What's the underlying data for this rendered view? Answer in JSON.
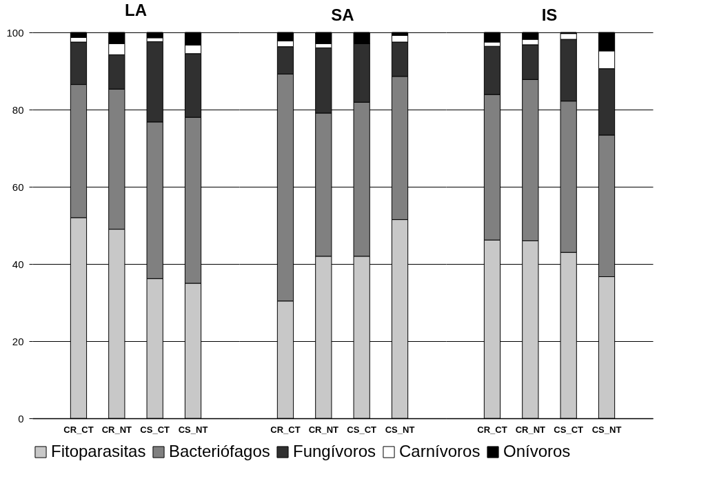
{
  "chart_data": [
    {
      "type": "bar",
      "title": "LA",
      "stacked": true,
      "categories": [
        "CR_CT",
        "CR_NT",
        "CS_CT",
        "CS_NT"
      ],
      "ylim": [
        0,
        100
      ],
      "yticks": [
        0,
        20,
        40,
        60,
        80,
        100
      ],
      "grid": "y",
      "legend": "bottom",
      "series": [
        {
          "name": "Fitoparasitas",
          "color": "#c8c8c8",
          "values": [
            52,
            49,
            36.2,
            35
          ]
        },
        {
          "name": "Bacteriófagos",
          "color": "#808080",
          "values": [
            34.5,
            36.3,
            40.6,
            43
          ]
        },
        {
          "name": "Fungívoros",
          "color": "#303030",
          "values": [
            11,
            8.9,
            20.8,
            16.5
          ]
        },
        {
          "name": "Carnívoros",
          "color": "#ffffff",
          "values": [
            1.2,
            2.9,
            1,
            2.2
          ]
        },
        {
          "name": "Onívoros",
          "color": "#000000",
          "values": [
            1.3,
            2.9,
            1.4,
            3.3
          ]
        }
      ]
    },
    {
      "type": "bar",
      "title": "SA",
      "stacked": true,
      "categories": [
        "CR_CT",
        "CR_NT",
        "CS_CT",
        "CS_NT"
      ],
      "ylim": [
        0,
        100
      ],
      "yticks": [
        0,
        20,
        40,
        60,
        80,
        100
      ],
      "grid": "y",
      "legend": "bottom",
      "tick_labels": "x",
      "series": [
        {
          "name": "Fitoparasitas",
          "color": "#c8c8c8",
          "values": [
            30.4,
            42,
            42,
            51.5
          ]
        },
        {
          "name": "Bacteriófagos",
          "color": "#808080",
          "values": [
            58.8,
            37.1,
            39.9,
            37.1
          ]
        },
        {
          "name": "Fungívoros",
          "color": "#303030",
          "values": [
            7.1,
            16.9,
            15.2,
            8.9
          ]
        },
        {
          "name": "Carnívoros",
          "color": "#ffffff",
          "values": [
            1.5,
            1.1,
            0,
            1.7
          ]
        },
        {
          "name": "Onívoros",
          "color": "#000000",
          "values": [
            2.2,
            2.9,
            2.9,
            0.8
          ]
        }
      ]
    },
    {
      "type": "bar",
      "title": "IS",
      "stacked": true,
      "categories": [
        "CR_CT",
        "CR_NT",
        "CS_CT",
        "CS_NT"
      ],
      "ylim": [
        0,
        100
      ],
      "yticks": [
        0,
        20,
        40,
        60,
        80,
        100
      ],
      "grid": "y",
      "legend": "bottom",
      "tick_labels": "x",
      "series": [
        {
          "name": "Fitoparasitas",
          "color": "#c8c8c8",
          "values": [
            46.2,
            46,
            43,
            36.7
          ]
        },
        {
          "name": "Bacteriófagos",
          "color": "#808080",
          "values": [
            37.7,
            41.8,
            39.2,
            36.7
          ]
        },
        {
          "name": "Fungívoros",
          "color": "#303030",
          "values": [
            12.5,
            9,
            16,
            17.2
          ]
        },
        {
          "name": "Carnívoros",
          "color": "#ffffff",
          "values": [
            1.1,
            1.4,
            1.5,
            4.6
          ]
        },
        {
          "name": "Onívoros",
          "color": "#000000",
          "values": [
            2.5,
            1.8,
            0.3,
            4.8
          ]
        }
      ]
    }
  ]
}
